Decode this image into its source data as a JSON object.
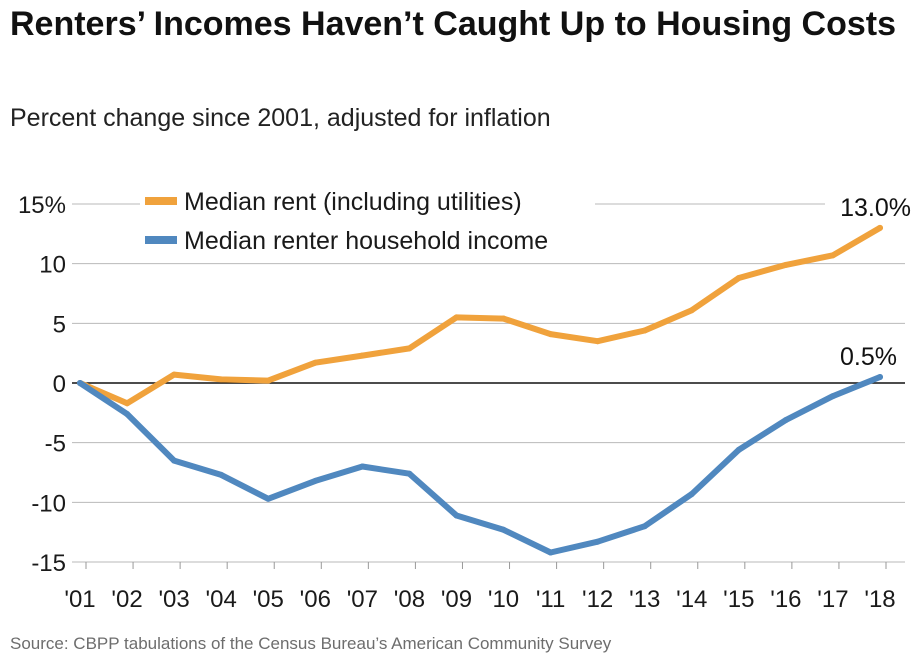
{
  "title": "Renters’ Incomes Haven’t Caught Up to Housing Costs",
  "subtitle": "Percent change since 2001, adjusted for inflation",
  "source": "Source: CBPP tabulations of the Census Bureau’s American Community Survey",
  "chart_data": {
    "type": "line",
    "title": "Renters’ Incomes Haven’t Caught Up to Housing Costs",
    "subtitle": "Percent change since 2001, adjusted for inflation",
    "xlabel": "",
    "ylabel": "",
    "categories": [
      "'01",
      "'02",
      "'03",
      "'04",
      "'05",
      "'06",
      "'07",
      "'08",
      "'09",
      "'10",
      "'11",
      "'12",
      "'13",
      "'14",
      "'15",
      "'16",
      "'17",
      "'18"
    ],
    "y_ticks": [
      15,
      10,
      5,
      0,
      -5,
      -10,
      -15
    ],
    "y_tick_labels": [
      "15%",
      "10",
      "5",
      "0",
      "-5",
      "-10",
      "-15"
    ],
    "ylim": [
      -15,
      15
    ],
    "grid": true,
    "legend_position": "top-left",
    "series": [
      {
        "name": "Median rent (including utilities)",
        "color": "#f0a23c",
        "values": [
          0,
          -1.7,
          0.7,
          0.3,
          0.2,
          1.7,
          2.3,
          2.9,
          5.5,
          5.4,
          4.1,
          3.5,
          4.4,
          6.1,
          8.8,
          9.9,
          10.7,
          13.0
        ],
        "end_label": "13.0%"
      },
      {
        "name": "Median renter household income",
        "color": "#5088bf",
        "values": [
          0,
          -2.6,
          -6.5,
          -7.7,
          -9.7,
          -8.2,
          -7.0,
          -7.6,
          -11.1,
          -12.3,
          -14.2,
          -13.3,
          -12.0,
          -9.3,
          -5.6,
          -3.1,
          -1.1,
          0.5
        ],
        "end_label": "0.5%"
      }
    ]
  }
}
